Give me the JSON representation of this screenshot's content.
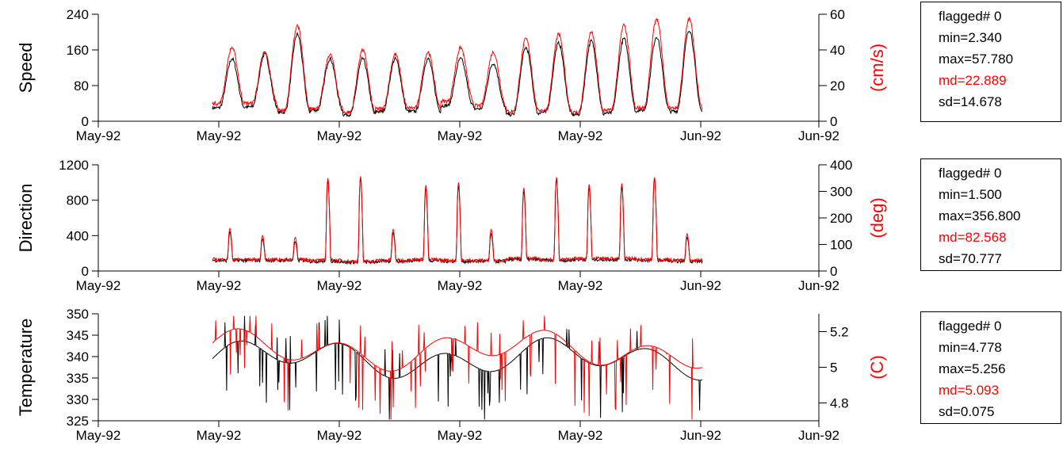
{
  "colors": {
    "primary": "#000000",
    "secondary": "#ff0000"
  },
  "date_axis_ticks": [
    "May-92",
    "May-92",
    "May-92",
    "May-92",
    "May-92",
    "Jun-92",
    "Jun-92"
  ],
  "chart_data": [
    {
      "type": "line",
      "ylabel": "Speed",
      "ylabel_right": "(cm/s)",
      "ylim": [
        0,
        240
      ],
      "yticks": [
        "0",
        "80",
        "160",
        "240"
      ],
      "ylim_right": [
        0,
        60
      ],
      "yticks_right": [
        "0",
        "20",
        "40",
        "60"
      ],
      "xticks": [
        "May-92",
        "May-92",
        "May-92",
        "May-92",
        "May-92",
        "Jun-92",
        "Jun-92"
      ],
      "series": [
        {
          "color": "#000000",
          "peaks": [
            140,
            150,
            195,
            140,
            140,
            140,
            140,
            140,
            130,
            165,
            175,
            180,
            185,
            190,
            205
          ],
          "troughs": [
            30,
            32,
            20,
            25,
            15,
            22,
            22,
            35,
            28,
            15,
            20,
            15,
            18,
            25,
            22
          ]
        },
        {
          "color": "#ff0000",
          "peaks": [
            165,
            155,
            215,
            150,
            160,
            150,
            155,
            165,
            155,
            185,
            195,
            200,
            215,
            230,
            230
          ],
          "troughs": [
            40,
            40,
            25,
            30,
            20,
            28,
            30,
            45,
            35,
            22,
            25,
            20,
            25,
            30,
            30
          ]
        }
      ]
    },
    {
      "type": "line",
      "ylabel": "Direction",
      "ylabel_right": "(deg)",
      "ylim": [
        0,
        1200
      ],
      "yticks": [
        "0",
        "400",
        "800",
        "1200"
      ],
      "ylim_right": [
        0,
        400
      ],
      "yticks_right": [
        "0",
        "100",
        "200",
        "300",
        "400"
      ],
      "xticks": [
        "May-92",
        "May-92",
        "May-92",
        "May-92",
        "May-92",
        "Jun-92",
        "Jun-92"
      ],
      "series": [
        {
          "color": "#000000",
          "peaks": [
            440,
            360,
            330,
            1020,
            1050,
            430,
            930,
            960,
            420,
            900,
            1040,
            940,
            950,
            1050,
            380
          ],
          "troughs": [
            120,
            120,
            120,
            110,
            100,
            110,
            120,
            110,
            110,
            130,
            120,
            130,
            130,
            120,
            110
          ]
        },
        {
          "color": "#ff0000",
          "peaks": [
            480,
            400,
            380,
            1050,
            1070,
            470,
            970,
            1000,
            470,
            940,
            1060,
            980,
            990,
            1060,
            420
          ],
          "troughs": [
            130,
            130,
            130,
            120,
            110,
            120,
            130,
            120,
            120,
            140,
            130,
            140,
            140,
            130,
            120
          ]
        }
      ]
    },
    {
      "type": "line",
      "ylabel": "Temperature",
      "ylabel_right": "(C)",
      "ylim": [
        325,
        350
      ],
      "yticks": [
        "325",
        "330",
        "335",
        "340",
        "345",
        "350"
      ],
      "ylim_right": [
        4.7,
        5.3
      ],
      "yticks_right": [
        "4.8",
        "5",
        "5.2"
      ],
      "xticks": [
        "May-92",
        "May-92",
        "May-92",
        "May-92",
        "May-92",
        "Jun-92",
        "Jun-92"
      ],
      "series": [
        {
          "color": "#000000",
          "baseline": 339.5
        },
        {
          "color": "#ff0000",
          "baseline": 341.5
        }
      ]
    }
  ],
  "stats": [
    {
      "flagged": "flagged# 0",
      "min": "min=2.340",
      "max": "max=57.780",
      "md": "md=22.889",
      "sd": "sd=14.678"
    },
    {
      "flagged": "flagged# 0",
      "min": "min=1.500",
      "max": "max=356.800",
      "md": "md=82.568",
      "sd": "sd=70.777"
    },
    {
      "flagged": "flagged# 0",
      "min": "min=4.778",
      "max": "max=5.256",
      "md": "md=5.093",
      "sd": "sd=0.075"
    }
  ]
}
